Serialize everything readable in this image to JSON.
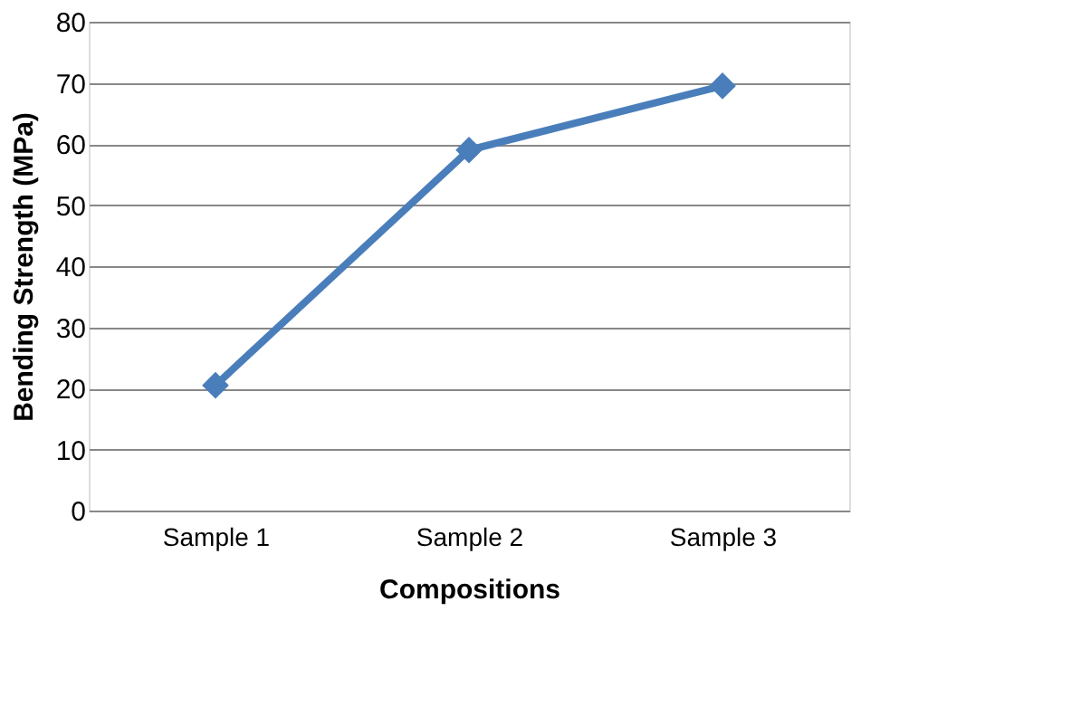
{
  "chart_data": {
    "type": "line",
    "xlabel": "Compositions",
    "ylabel": "Bending Strength (MPa)",
    "categories": [
      "Sample 1",
      "Sample 2",
      "Sample 3"
    ],
    "series": [
      {
        "color": "#4a7ebb",
        "marker": "diamond",
        "values": [
          20.5,
          59,
          69.5
        ]
      }
    ],
    "ylim": [
      0,
      80
    ],
    "yticks": [
      0,
      10,
      20,
      30,
      40,
      50,
      60,
      70,
      80
    ],
    "grid": "y"
  }
}
